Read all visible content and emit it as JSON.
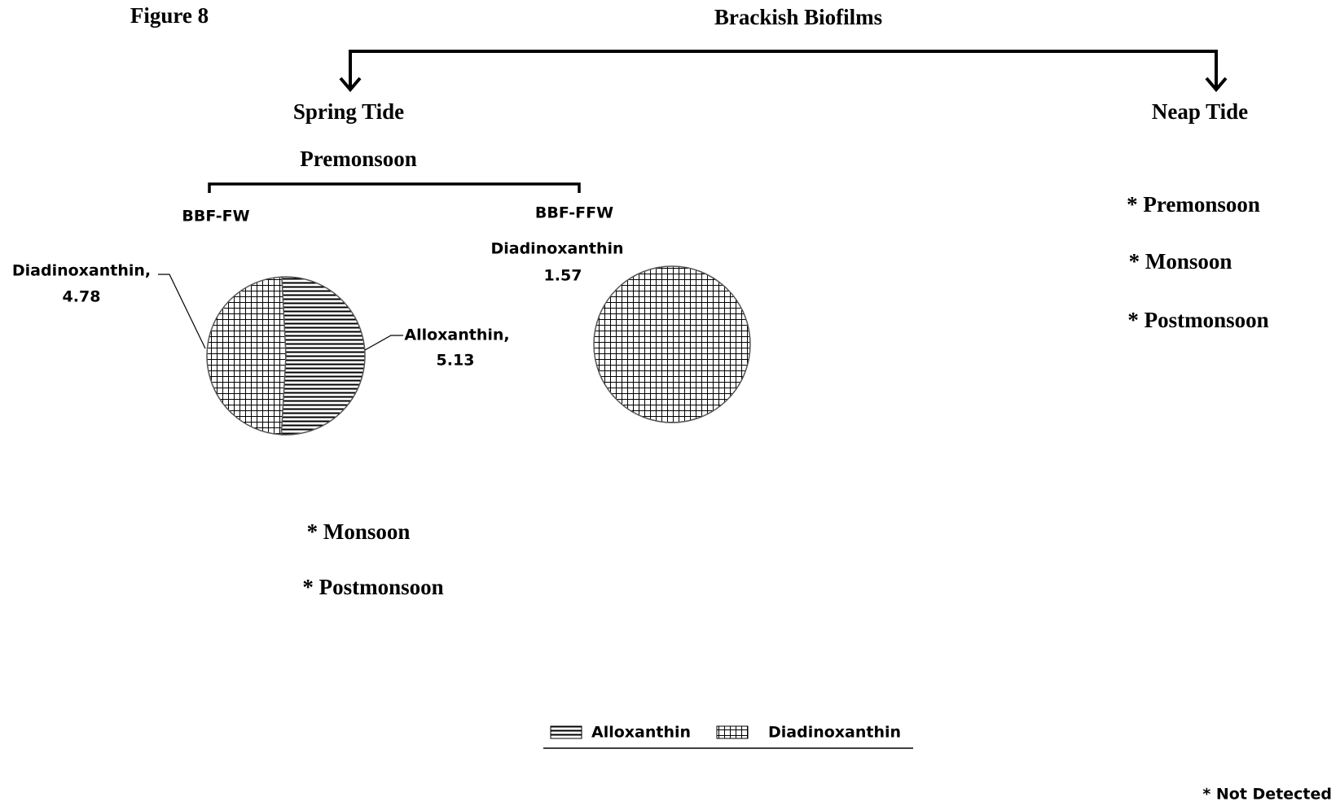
{
  "figure_label": "Figure 8",
  "title": "Brackish Biofilms",
  "branches": [
    {
      "label": "Spring Tide",
      "season": "Premonsoon",
      "not_detected": [
        "* Monsoon",
        "* Postmonsoon"
      ]
    },
    {
      "label": "Neap Tide",
      "not_detected": [
        "* Premonsoon",
        "* Monsoon",
        "* Postmonsoon"
      ]
    }
  ],
  "chart_data": [
    {
      "type": "pie",
      "title": "BBF-FW",
      "categories": [
        "Alloxanthin",
        "Diadinoxanthin"
      ],
      "values": [
        5.13,
        4.78
      ],
      "label_names": [
        "Alloxanthin,",
        "Diadinoxanthin,"
      ],
      "patterns": [
        "horizontal-lines",
        "grid"
      ]
    },
    {
      "type": "pie",
      "title": "BBF-FFW",
      "categories": [
        "Diadinoxanthin"
      ],
      "values": [
        1.57
      ],
      "patterns": [
        "grid"
      ]
    }
  ],
  "footnote": "* Not Detected"
}
